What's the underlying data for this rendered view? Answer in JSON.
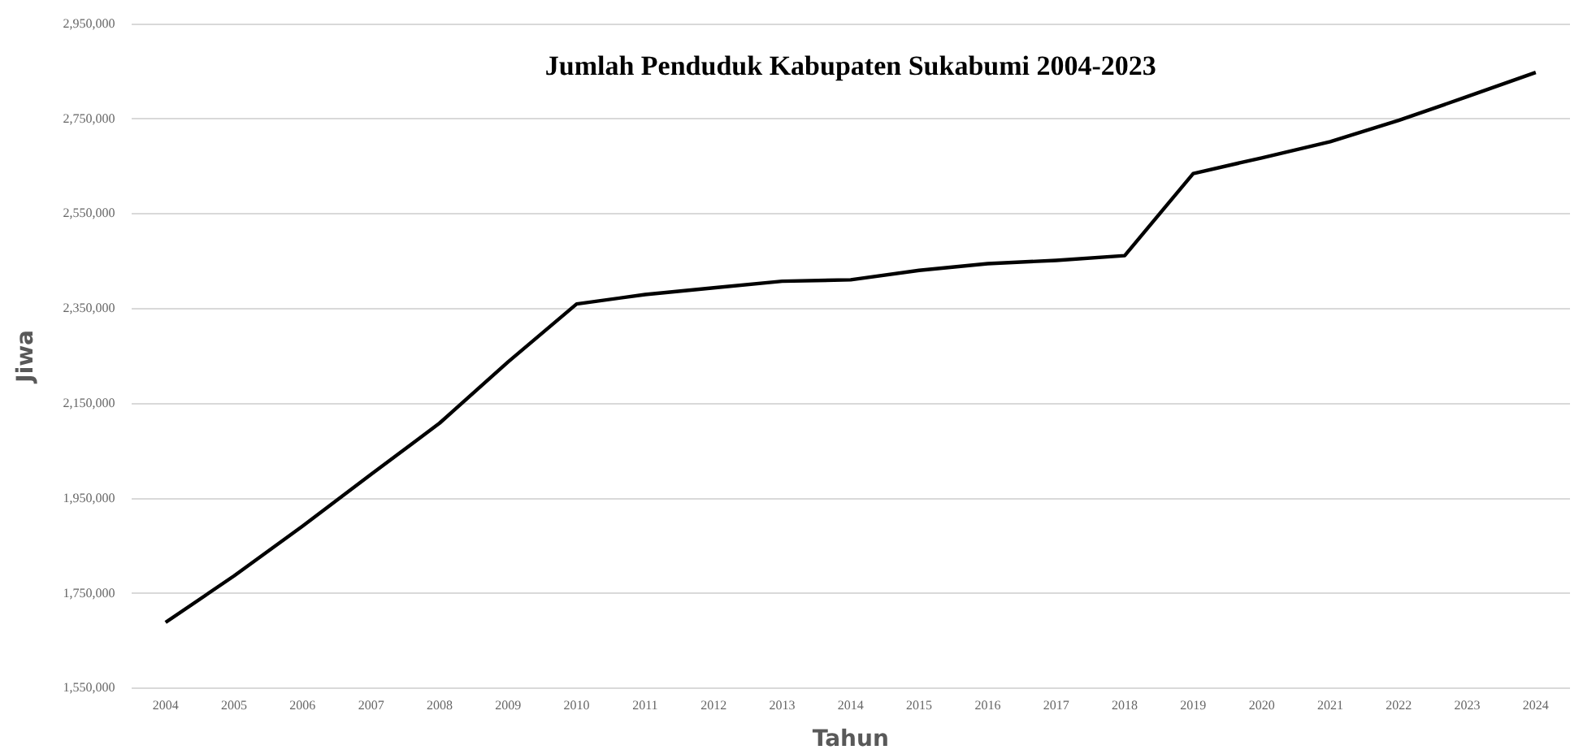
{
  "chart_data": {
    "type": "line",
    "title": "Jumlah Penduduk Kabupaten Sukabumi 2004-2023",
    "xlabel": "Tahun",
    "ylabel": "Jiwa",
    "categories": [
      "2004",
      "2005",
      "2006",
      "2007",
      "2008",
      "2009",
      "2010",
      "2011",
      "2012",
      "2013",
      "2014",
      "2015",
      "2016",
      "2017",
      "2018",
      "2019",
      "2020",
      "2021",
      "2022",
      "2023",
      "2024"
    ],
    "series": [
      {
        "color": "#000000",
        "values": [
          1689000,
          1787000,
          1892000,
          2001000,
          2109000,
          2238000,
          2360000,
          2380000,
          2394000,
          2408000,
          2411000,
          2431000,
          2445000,
          2452000,
          2462000,
          2635000,
          2668000,
          2702000,
          2747000,
          2797000,
          2848000
        ]
      }
    ],
    "ylim": [
      1550000,
      2950000
    ],
    "yticks": [
      {
        "value": 1550000,
        "label": "1,550,000"
      },
      {
        "value": 1750000,
        "label": "1,750,000"
      },
      {
        "value": 1950000,
        "label": "1,950,000"
      },
      {
        "value": 2150000,
        "label": "2,150,000"
      },
      {
        "value": 2350000,
        "label": "2,350,000"
      },
      {
        "value": 2550000,
        "label": "2,550,000"
      },
      {
        "value": 2750000,
        "label": "2,750,000"
      },
      {
        "value": 2950000,
        "label": "2,950,000"
      }
    ],
    "grid": "y",
    "legend": false,
    "marker": "none",
    "line_style": "solid"
  }
}
